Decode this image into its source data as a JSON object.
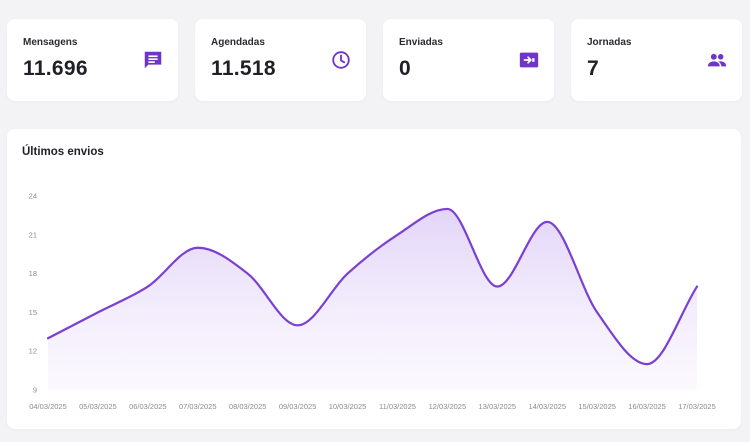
{
  "stats": [
    {
      "title": "Mensagens",
      "value": "11.696",
      "icon": "chat-icon"
    },
    {
      "title": "Agendadas",
      "value": "11.518",
      "icon": "clock-icon"
    },
    {
      "title": "Enviadas",
      "value": "0",
      "icon": "send-icon"
    },
    {
      "title": "Jornadas",
      "value": "7",
      "icon": "people-icon"
    }
  ],
  "colors": {
    "accent": "#6f35c9",
    "line": "#7b3fd1",
    "fill": "#e9ddfb",
    "background": "#f3f3f5"
  },
  "chart": {
    "title": "Últimos envios"
  },
  "chart_data": {
    "type": "area",
    "title": "Últimos envios",
    "xlabel": "",
    "ylabel": "",
    "x": [
      "04/03/2025",
      "05/03/2025",
      "06/03/2025",
      "07/03/2025",
      "08/03/2025",
      "09/03/2025",
      "10/03/2025",
      "11/03/2025",
      "12/03/2025",
      "13/03/2025",
      "14/03/2025",
      "15/03/2025",
      "16/03/2025",
      "17/03/2025"
    ],
    "values": [
      13,
      15,
      17,
      20,
      18,
      14,
      18,
      21,
      23,
      17,
      22,
      15,
      11,
      17
    ],
    "yticks": [
      9,
      12,
      15,
      18,
      21,
      24
    ],
    "ylim": [
      9,
      24
    ],
    "grid": false,
    "smooth": true
  }
}
